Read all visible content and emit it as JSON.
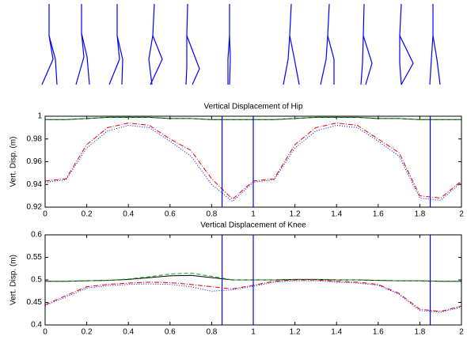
{
  "chart_data": [
    {
      "type": "line",
      "title": "Vertical Displacement of Hip",
      "y_label": "Vert. Disp. (m)",
      "x": [
        0,
        0.1,
        0.2,
        0.3,
        0.4,
        0.5,
        0.6,
        0.7,
        0.8,
        0.9,
        1,
        1.1,
        1.2,
        1.3,
        1.4,
        1.5,
        1.6,
        1.7,
        1.8,
        1.9,
        2
      ],
      "xlim": [
        0,
        2
      ],
      "xticks": [
        0,
        0.2,
        0.4,
        0.6,
        0.8,
        1,
        1.2,
        1.4,
        1.6,
        1.8,
        2
      ],
      "ylim": [
        0.92,
        1
      ],
      "yticks": [
        0.92,
        0.94,
        0.96,
        0.98,
        1
      ],
      "vlines": [
        0.85,
        1,
        1.85
      ],
      "vline_color": "#0000ff",
      "series": [
        {
          "color": "#000000",
          "style": "solid",
          "values": [
            0.997,
            0.997,
            0.998,
            0.999,
            0.999,
            0.999,
            0.998,
            0.998,
            0.997,
            0.997,
            0.997,
            0.997,
            0.998,
            0.999,
            0.999,
            0.999,
            0.998,
            0.998,
            0.997,
            0.997,
            0.997
          ]
        },
        {
          "color": "#00a000",
          "style": "dashed",
          "values": [
            0.997,
            0.997,
            0.998,
            0.999,
            0.999,
            0.999,
            0.998,
            0.998,
            0.997,
            0.997,
            0.997,
            0.997,
            0.998,
            0.999,
            0.999,
            0.999,
            0.998,
            0.998,
            0.997,
            0.997,
            0.997
          ]
        },
        {
          "color": "#e00000",
          "style": "dashdot",
          "values": [
            0.943,
            0.945,
            0.975,
            0.99,
            0.994,
            0.992,
            0.98,
            0.97,
            0.945,
            0.927,
            0.943,
            0.945,
            0.975,
            0.99,
            0.994,
            0.992,
            0.98,
            0.968,
            0.93,
            0.928,
            0.943
          ]
        },
        {
          "color": "#0000ff",
          "style": "dotted",
          "values": [
            0.942,
            0.944,
            0.972,
            0.987,
            0.992,
            0.99,
            0.978,
            0.965,
            0.94,
            0.925,
            0.942,
            0.944,
            0.972,
            0.987,
            0.992,
            0.99,
            0.978,
            0.965,
            0.928,
            0.926,
            0.942
          ]
        }
      ]
    },
    {
      "type": "line",
      "title": "Vertical Displacement of Knee",
      "y_label": "Vert. Disp. (m)",
      "x": [
        0,
        0.1,
        0.2,
        0.3,
        0.4,
        0.5,
        0.6,
        0.7,
        0.8,
        0.9,
        1,
        1.1,
        1.2,
        1.3,
        1.4,
        1.5,
        1.6,
        1.7,
        1.8,
        1.9,
        2
      ],
      "xlim": [
        0,
        2
      ],
      "xticks": [
        0,
        0.2,
        0.4,
        0.6,
        0.8,
        1,
        1.2,
        1.4,
        1.6,
        1.8,
        2
      ],
      "ylim": [
        0.4,
        0.6
      ],
      "yticks": [
        0.4,
        0.45,
        0.5,
        0.55,
        0.6
      ],
      "vlines": [
        0.85,
        1,
        1.85
      ],
      "vline_color": "#0000ff",
      "series": [
        {
          "color": "#000000",
          "style": "solid",
          "values": [
            0.497,
            0.497,
            0.498,
            0.499,
            0.501,
            0.505,
            0.509,
            0.51,
            0.505,
            0.5,
            0.5,
            0.5,
            0.501,
            0.501,
            0.5,
            0.5,
            0.499,
            0.498,
            0.498,
            0.497,
            0.497
          ]
        },
        {
          "color": "#00a000",
          "style": "dashed",
          "values": [
            0.497,
            0.497,
            0.498,
            0.499,
            0.502,
            0.507,
            0.513,
            0.515,
            0.508,
            0.5,
            0.5,
            0.5,
            0.501,
            0.501,
            0.5,
            0.5,
            0.499,
            0.498,
            0.498,
            0.497,
            0.497
          ]
        },
        {
          "color": "#e00000",
          "style": "dashdot",
          "values": [
            0.445,
            0.465,
            0.485,
            0.49,
            0.493,
            0.495,
            0.494,
            0.49,
            0.485,
            0.48,
            0.488,
            0.497,
            0.5,
            0.5,
            0.497,
            0.495,
            0.49,
            0.47,
            0.435,
            0.43,
            0.442
          ]
        },
        {
          "color": "#0000ff",
          "style": "dotted",
          "values": [
            0.443,
            0.462,
            0.482,
            0.487,
            0.49,
            0.491,
            0.49,
            0.485,
            0.475,
            0.478,
            0.486,
            0.495,
            0.498,
            0.498,
            0.495,
            0.493,
            0.488,
            0.468,
            0.432,
            0.428,
            0.44
          ]
        }
      ]
    }
  ]
}
